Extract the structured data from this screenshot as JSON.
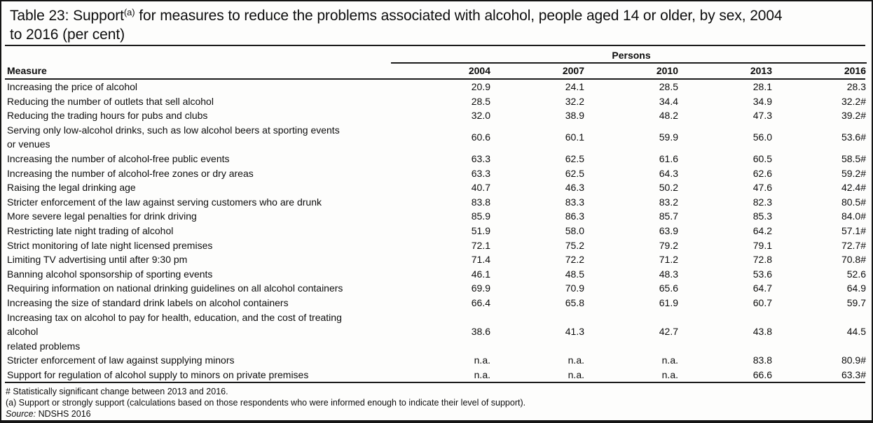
{
  "title": {
    "line1_pre": "Table 23: Support",
    "line1_sup": "(a)",
    "line1_post": " for measures to reduce the problems associated with alcohol, people aged 14 or older, by sex, 2004",
    "line2": "to 2016 (per cent)"
  },
  "table": {
    "span_header": "Persons",
    "measure_header": "Measure",
    "years": [
      "2004",
      "2007",
      "2010",
      "2013",
      "2016"
    ],
    "rows": [
      {
        "measure": "Increasing the price of alcohol",
        "values": [
          "20.9",
          "24.1",
          "28.5",
          "28.1",
          "28.3"
        ]
      },
      {
        "measure": "Reducing the number of outlets that sell alcohol",
        "values": [
          "28.5",
          "32.2",
          "34.4",
          "34.9",
          "32.2#"
        ]
      },
      {
        "measure": "Reducing the trading hours for pubs and clubs",
        "values": [
          "32.0",
          "38.9",
          "48.2",
          "47.3",
          "39.2#"
        ]
      },
      {
        "measure": "Serving only low-alcohol drinks, such as low alcohol beers at sporting events\nor venues",
        "values": [
          "60.6",
          "60.1",
          "59.9",
          "56.0",
          "53.6#"
        ]
      },
      {
        "measure": "Increasing the number of alcohol-free public events",
        "values": [
          "63.3",
          "62.5",
          "61.6",
          "60.5",
          "58.5#"
        ]
      },
      {
        "measure": "Increasing the number of alcohol-free zones or dry areas",
        "values": [
          "63.3",
          "62.5",
          "64.3",
          "62.6",
          "59.2#"
        ]
      },
      {
        "measure": "Raising the legal drinking age",
        "values": [
          "40.7",
          "46.3",
          "50.2",
          "47.6",
          "42.4#"
        ]
      },
      {
        "measure": "Stricter enforcement of the law against serving customers who are drunk",
        "values": [
          "83.8",
          "83.3",
          "83.2",
          "82.3",
          "80.5#"
        ]
      },
      {
        "measure": "More severe legal penalties for drink driving",
        "values": [
          "85.9",
          "86.3",
          "85.7",
          "85.3",
          "84.0#"
        ]
      },
      {
        "measure": "Restricting late night trading of alcohol",
        "values": [
          "51.9",
          "58.0",
          "63.9",
          "64.2",
          "57.1#"
        ]
      },
      {
        "measure": "Strict monitoring of late night licensed premises",
        "values": [
          "72.1",
          "75.2",
          "79.2",
          "79.1",
          "72.7#"
        ]
      },
      {
        "measure": "Limiting TV advertising until after 9:30 pm",
        "values": [
          "71.4",
          "72.2",
          "71.2",
          "72.8",
          "70.8#"
        ]
      },
      {
        "measure": "Banning alcohol sponsorship of sporting events",
        "values": [
          "46.1",
          "48.5",
          "48.3",
          "53.6",
          "52.6"
        ]
      },
      {
        "measure": "Requiring information on national drinking guidelines on all alcohol containers",
        "values": [
          "69.9",
          "70.9",
          "65.6",
          "64.7",
          "64.9"
        ]
      },
      {
        "measure": "Increasing the size of standard drink labels on alcohol containers",
        "values": [
          "66.4",
          "65.8",
          "61.9",
          "60.7",
          "59.7"
        ]
      },
      {
        "measure": "Increasing tax on alcohol to pay for health, education, and the cost of treating\nalcohol\nrelated problems",
        "values": [
          "38.6",
          "41.3",
          "42.7",
          "43.8",
          "44.5"
        ]
      },
      {
        "measure": "Stricter enforcement of law against supplying minors",
        "values": [
          "n.a.",
          "n.a.",
          "n.a.",
          "83.8",
          "80.9#"
        ]
      },
      {
        "measure": "Support for regulation of alcohol supply to minors on private premises",
        "values": [
          "n.a.",
          "n.a.",
          "n.a.",
          "66.6",
          "63.3#"
        ]
      }
    ]
  },
  "footnotes": {
    "hash_note": "# Statistically significant change between 2013 and 2016.",
    "a_note": "(a) Support or strongly support (calculations based on those respondents who were informed enough to indicate their level of support).",
    "source_label": "Source:",
    "source_text": " NDSHS 2016"
  }
}
